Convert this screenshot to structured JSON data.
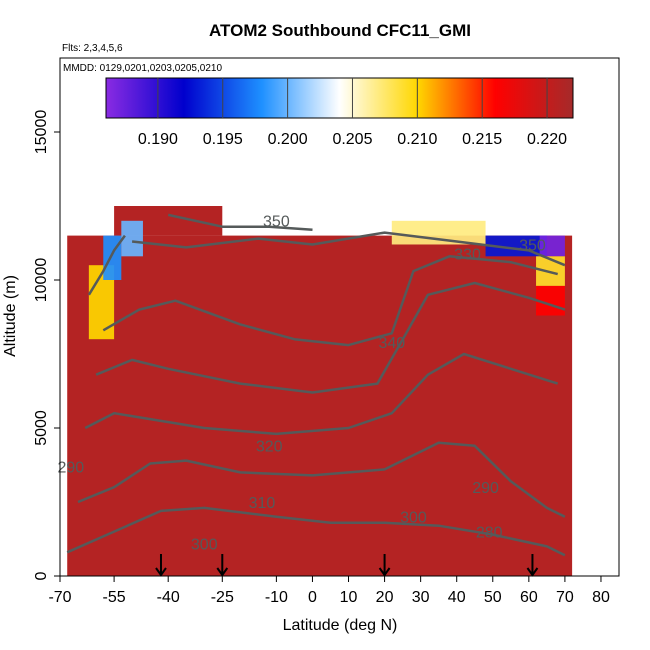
{
  "chart_data": {
    "type": "heatmap",
    "title": "ATOM2 Southbound CFC11_GMI",
    "subtitle_flights": "Flts: 2,3,4,5,6",
    "subtitle_dates": "MMDD: 0129,0201,0203,0205,0210",
    "xlabel": "Latitude (deg N)",
    "ylabel": "Altitude (m)",
    "xlim": [
      -70,
      85
    ],
    "ylim": [
      0,
      17500
    ],
    "x_ticks": [
      -70,
      -55,
      -40,
      -25,
      -10,
      0,
      10,
      20,
      30,
      40,
      50,
      60,
      70,
      80
    ],
    "x_tick_labels": [
      "-70",
      "-55",
      "-40",
      "-25",
      "-10",
      "0",
      "10",
      "20",
      "30",
      "40",
      "50",
      "60",
      "70",
      "80"
    ],
    "y_ticks": [
      0,
      5000,
      10000,
      15000
    ],
    "y_tick_labels": [
      "0",
      "5000",
      "10000",
      "15000"
    ],
    "colorbar": {
      "range": [
        0.186,
        0.222
      ],
      "ticks": [
        0.19,
        0.195,
        0.2,
        0.205,
        0.21,
        0.215,
        0.22
      ],
      "tick_labels": [
        "0.190",
        "0.195",
        "0.200",
        "0.205",
        "0.210",
        "0.215",
        "0.220"
      ],
      "colors": [
        "#8a2be2",
        "#0000cd",
        "#1e90ff",
        "#ffffff",
        "#ffd700",
        "#ff0000",
        "#a52a2a"
      ]
    },
    "field": {
      "background_value": 0.221,
      "lat_range": [
        -68,
        72
      ],
      "top_altitude": 11500,
      "features": [
        {
          "lat": [
            -62,
            -55
          ],
          "alt": [
            8000,
            10500
          ],
          "value": 0.21
        },
        {
          "lat": [
            -58,
            -53
          ],
          "alt": [
            10000,
            11500
          ],
          "value": 0.198
        },
        {
          "lat": [
            -53,
            -47
          ],
          "alt": [
            10800,
            12000
          ],
          "value": 0.2
        },
        {
          "lat": [
            22,
            48
          ],
          "alt": [
            11200,
            12000
          ],
          "value": 0.207
        },
        {
          "lat": [
            48,
            65
          ],
          "alt": [
            10800,
            11500
          ],
          "value": 0.193
        },
        {
          "lat": [
            63,
            70
          ],
          "alt": [
            10800,
            11500
          ],
          "value": 0.187
        },
        {
          "lat": [
            62,
            70
          ],
          "alt": [
            9800,
            10800
          ],
          "value": 0.209
        },
        {
          "lat": [
            62,
            70
          ],
          "alt": [
            8800,
            9800
          ],
          "value": 0.216
        }
      ]
    },
    "contour_labels": [
      {
        "text": "350",
        "lat": -10,
        "alt": 11800
      },
      {
        "text": "330",
        "lat": 43,
        "alt": 10700
      },
      {
        "text": "350",
        "lat": 61,
        "alt": 11000
      },
      {
        "text": "340",
        "lat": 22,
        "alt": 7700
      },
      {
        "text": "320",
        "lat": -12,
        "alt": 4200
      },
      {
        "text": "310",
        "lat": -14,
        "alt": 2300
      },
      {
        "text": "300",
        "lat": -30,
        "alt": 900
      },
      {
        "text": "300",
        "lat": 28,
        "alt": 1800
      },
      {
        "text": "290",
        "lat": -67,
        "alt": 3500
      },
      {
        "text": "290",
        "lat": 48,
        "alt": 2800
      },
      {
        "text": "280",
        "lat": 49,
        "alt": 1300
      }
    ],
    "marker_latitudes": [
      -42,
      -25,
      20,
      61
    ]
  }
}
